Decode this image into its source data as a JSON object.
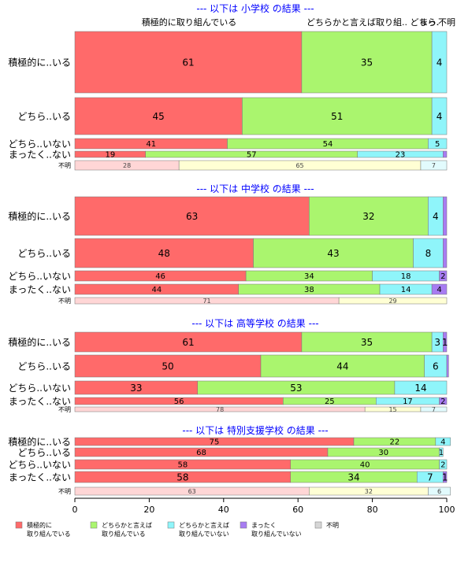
{
  "colors": {
    "c1": "#ff6a6a",
    "c2": "#aaf56e",
    "c3": "#8ff5fa",
    "c4": "#a77cf2",
    "c5": "#d6d6d6",
    "title": "#0000ff"
  },
  "chart_data": {
    "type": "bar",
    "orientation": "horizontal",
    "stacked": true,
    "xlim": [
      0,
      100
    ],
    "xticks": [
      "0",
      "20",
      "40",
      "60",
      "80",
      "100"
    ],
    "grid": false,
    "legend_position": "bottom",
    "series": [
      {
        "name_lines": [
          "積極的に",
          "取り組んでいる"
        ]
      },
      {
        "name_lines": [
          "どちらかと言えば",
          "取り組んでいる"
        ]
      },
      {
        "name_lines": [
          "どちらかと言えば",
          "取り組んでいない"
        ]
      },
      {
        "name_lines": [
          "まったく",
          "取り組んでいない"
        ]
      },
      {
        "name_lines": [
          "不明"
        ]
      }
    ],
    "top_labels": [
      "積極的に取り組んでいる",
      "どちらかと言えば取り組.. どちら.",
      "まっ.",
      "不明"
    ],
    "panels": [
      {
        "title": "--- 以下は 小学校 の結果 ---",
        "rows": [
          {
            "label": "積極的に..いる",
            "values": [
              61,
              35,
              4,
              0
            ],
            "labels": [
              "61",
              "35",
              "4",
              ""
            ]
          },
          {
            "label": "どちら..いる",
            "values": [
              45,
              51,
              4,
              0
            ],
            "labels": [
              "45",
              "51",
              "4",
              ""
            ]
          },
          {
            "label": "どちら..いない",
            "values": [
              41,
              54,
              5,
              0
            ],
            "labels": [
              "41",
              "54",
              "5",
              ""
            ]
          },
          {
            "label": "まったく..ない",
            "values": [
              19,
              57,
              23,
              1
            ],
            "labels": [
              "19",
              "57",
              "23",
              ""
            ]
          },
          {
            "label": "不明",
            "values": [
              28,
              65,
              7,
              0
            ],
            "labels": [
              "28",
              "65",
              "7",
              ""
            ]
          }
        ]
      },
      {
        "title": "--- 以下は 中学校 の結果 ---",
        "rows": [
          {
            "label": "積極的に..いる",
            "values": [
              63,
              32,
              4,
              1
            ],
            "labels": [
              "63",
              "32",
              "4",
              ""
            ]
          },
          {
            "label": "どちら..いる",
            "values": [
              48,
              43,
              8,
              1
            ],
            "labels": [
              "48",
              "43",
              "8",
              ""
            ]
          },
          {
            "label": "どちら..いない",
            "values": [
              46,
              34,
              18,
              2
            ],
            "labels": [
              "46",
              "34",
              "18",
              "2"
            ]
          },
          {
            "label": "まったく..ない",
            "values": [
              44,
              38,
              14,
              4
            ],
            "labels": [
              "44",
              "38",
              "14",
              "4"
            ]
          },
          {
            "label": "不明",
            "values": [
              71,
              29,
              0,
              0
            ],
            "labels": [
              "71",
              "29",
              "",
              ""
            ]
          }
        ]
      },
      {
        "title": "--- 以下は 高等学校 の結果 ---",
        "rows": [
          {
            "label": "積極的に..いる",
            "values": [
              61,
              35,
              3,
              1
            ],
            "labels": [
              "61",
              "35",
              "3",
              "1"
            ]
          },
          {
            "label": "どちら..いる",
            "values": [
              50,
              44,
              6,
              0.5
            ],
            "labels": [
              "50",
              "44",
              "6",
              ""
            ]
          },
          {
            "label": "どちら..いない",
            "values": [
              33,
              53,
              14,
              0
            ],
            "labels": [
              "33",
              "53",
              "14",
              ""
            ]
          },
          {
            "label": "まったく..ない",
            "values": [
              56,
              25,
              17,
              2
            ],
            "labels": [
              "56",
              "25",
              "17",
              "2"
            ]
          },
          {
            "label": "不明",
            "values": [
              78,
              15,
              7,
              0
            ],
            "labels": [
              "78",
              "15",
              "7",
              ""
            ]
          }
        ]
      },
      {
        "title": "--- 以下は 特別支援学校 の結果 ---",
        "rows": [
          {
            "label": "積極的に..いる",
            "values": [
              75,
              22,
              4,
              0
            ],
            "labels": [
              "75",
              "22",
              "4",
              ""
            ]
          },
          {
            "label": "どちら..いる",
            "values": [
              68,
              30,
              1,
              0
            ],
            "labels": [
              "68",
              "30",
              "1",
              ""
            ]
          },
          {
            "label": "どちら..いない",
            "values": [
              58,
              40,
              2,
              0
            ],
            "labels": [
              "58",
              "40",
              "2",
              ""
            ]
          },
          {
            "label": "まったく..ない",
            "values": [
              58,
              34,
              7,
              1
            ],
            "labels": [
              "58",
              "34",
              "7",
              "1"
            ]
          },
          {
            "label": "不明",
            "values": [
              63,
              32,
              6,
              0
            ],
            "labels": [
              "63",
              "32",
              "6",
              ""
            ]
          }
        ]
      }
    ]
  }
}
